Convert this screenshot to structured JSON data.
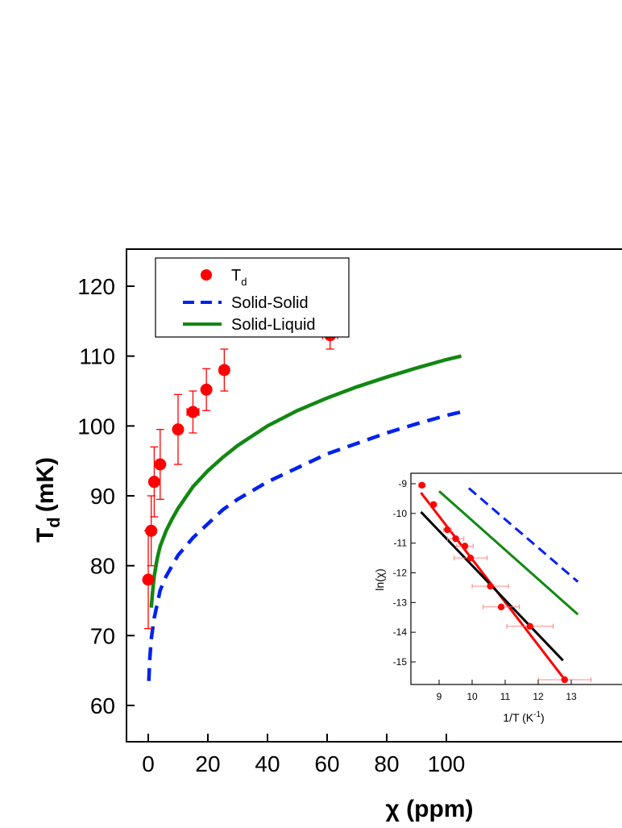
{
  "chart_data": [
    {
      "type": "scatter",
      "title": "",
      "xlabel": "χ (ppm)",
      "ylabel": "T",
      "ylabel_sub": "d",
      "ylabel_unit": "(mK)",
      "xlim": [
        -5,
        105
      ],
      "ylim": [
        55,
        125
      ],
      "xticks": [
        0,
        20,
        40,
        60,
        80,
        100
      ],
      "yticks": [
        60,
        70,
        80,
        90,
        100,
        110,
        120
      ],
      "legend": {
        "placement": "top-left",
        "entries": [
          {
            "label": "T",
            "sub": "d",
            "style": "marker"
          },
          {
            "label": "Solid-Solid",
            "style": "dashed"
          },
          {
            "label": "Solid-Liquid",
            "style": "solid"
          }
        ]
      },
      "colors": {
        "td": "#ff0000",
        "solid_solid": "#0022ee",
        "solid_liquid": "#118811"
      },
      "series": [
        {
          "name": "T",
          "kind": "points",
          "points": [
            {
              "x": 0,
              "y": 78,
              "yerr": [
                7,
                7
              ],
              "xerr": 0
            },
            {
              "x": 1,
              "y": 85,
              "yerr": [
                5,
                5
              ],
              "xerr": 0
            },
            {
              "x": 2,
              "y": 92,
              "yerr": [
                5,
                5
              ],
              "xerr": 0
            },
            {
              "x": 4,
              "y": 94.5,
              "yerr": [
                5,
                5
              ],
              "xerr": 0
            },
            {
              "x": 10,
              "y": 99.5,
              "yerr": [
                5,
                5
              ],
              "xerr": 0
            },
            {
              "x": 15,
              "y": 102,
              "yerr": [
                3,
                3
              ],
              "xerr": 2
            },
            {
              "x": 19.5,
              "y": 105.2,
              "yerr": [
                3,
                3
              ],
              "xerr": 0
            },
            {
              "x": 25.5,
              "y": 108,
              "yerr": [
                3,
                3
              ],
              "xerr": 1.5
            },
            {
              "x": 61,
              "y": 113,
              "yerr": [
                2,
                2
              ],
              "xerr": 2.5
            }
          ]
        },
        {
          "name": "Solid-Solid",
          "kind": "dashed",
          "x": [
            0.2,
            0.5,
            1,
            2,
            3,
            4,
            6,
            8,
            10,
            15,
            20,
            25,
            30,
            40,
            50,
            60,
            70,
            80,
            90,
            100,
            105
          ],
          "y": [
            63.5,
            66.5,
            69.5,
            72.5,
            74.5,
            76.5,
            78.5,
            80,
            81.5,
            84,
            86,
            88,
            89.5,
            92,
            94,
            96,
            97.5,
            99,
            100.3,
            101.5,
            102
          ]
        },
        {
          "name": "Solid-Liquid",
          "kind": "solid",
          "x": [
            1,
            1.5,
            2,
            3,
            4,
            6,
            8,
            10,
            15,
            20,
            25,
            30,
            40,
            50,
            60,
            70,
            80,
            90,
            100,
            105
          ],
          "y": [
            74,
            76.5,
            78.5,
            81,
            82.8,
            85,
            86.7,
            88.2,
            91.3,
            93.6,
            95.5,
            97.2,
            100,
            102.2,
            104,
            105.6,
            107,
            108.3,
            109.5,
            110
          ]
        }
      ]
    },
    {
      "type": "scatter",
      "title": "",
      "xlabel": "1/T (K",
      "xlabel_sup": "-1",
      "xlabel_end": ")",
      "ylabel": "ln(χ)",
      "xlim": [
        8.3,
        13.2
      ],
      "ylim": [
        -15.9,
        -8.8
      ],
      "xticks": [
        9,
        10,
        11,
        12,
        13
      ],
      "yticks": [
        -9,
        -10,
        -11,
        -12,
        -13,
        -14,
        -15
      ],
      "series": [
        {
          "name": "",
          "kind": "points",
          "color": "#ff0000",
          "points": [
            {
              "x": 8.48,
              "y": -9.05,
              "xerr": 0.1
            },
            {
              "x": 8.83,
              "y": -9.7,
              "xerr": 0.1
            },
            {
              "x": 9.25,
              "y": -10.55,
              "xerr": 0.12
            },
            {
              "x": 9.5,
              "y": -10.85,
              "xerr": 0.25
            },
            {
              "x": 9.78,
              "y": -11.1,
              "xerr": 0.25
            },
            {
              "x": 9.95,
              "y": -11.5,
              "xerr": 0.5
            },
            {
              "x": 10.55,
              "y": -12.45,
              "xerr": 0.55
            },
            {
              "x": 10.88,
              "y": -13.15,
              "xerr": 0.55
            },
            {
              "x": 11.75,
              "y": -13.8,
              "xerr": 0.7
            },
            {
              "x": 12.8,
              "y": -15.6,
              "xerr": 0.8
            }
          ]
        },
        {
          "name": "",
          "kind": "line",
          "color": "#ff0000",
          "x": [
            8.45,
            12.82
          ],
          "y": [
            -9.3,
            -15.62
          ]
        },
        {
          "name": "",
          "kind": "line",
          "color": "#000000",
          "x": [
            8.45,
            12.75
          ],
          "y": [
            -9.95,
            -14.95
          ]
        },
        {
          "name": "",
          "kind": "line",
          "color": "#118811",
          "x": [
            9.0,
            13.2
          ],
          "y": [
            -9.25,
            -13.4
          ]
        },
        {
          "name": "",
          "kind": "dashed",
          "color": "#0022ee",
          "x": [
            9.9,
            13.2
          ],
          "y": [
            -9.15,
            -12.3
          ]
        }
      ]
    }
  ]
}
